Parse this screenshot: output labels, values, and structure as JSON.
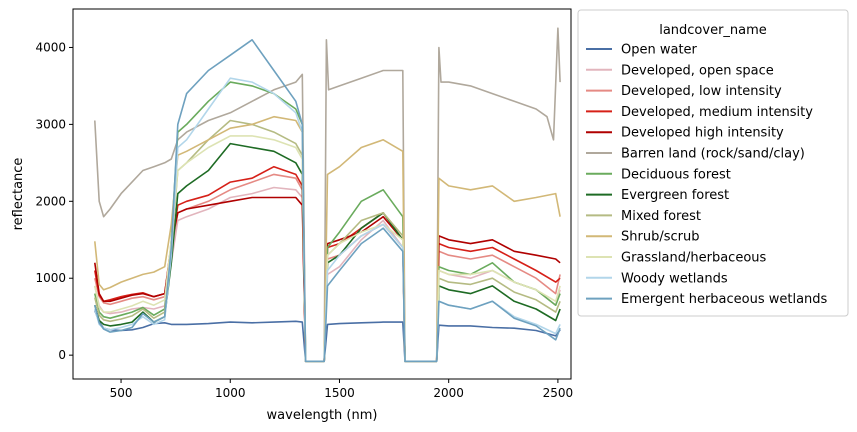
{
  "chart_data": {
    "type": "line",
    "title": "",
    "xlabel": "wavelength (nm)",
    "ylabel": "reflectance",
    "xlim": [
      280,
      2560
    ],
    "ylim": [
      -310,
      4500
    ],
    "xticks": [
      500,
      1000,
      1500,
      2000,
      2500
    ],
    "yticks": [
      0,
      1000,
      2000,
      3000,
      4000
    ],
    "grid": false,
    "legend": {
      "title": "landcover_name",
      "placement": "outside-right"
    },
    "series": [
      {
        "name": "Open water",
        "color": "#4a6fa5",
        "x": [
          380,
          400,
          420,
          450,
          500,
          550,
          600,
          650,
          700,
          730,
          760,
          800,
          900,
          1000,
          1100,
          1200,
          1300,
          1330,
          1345,
          1430,
          1445,
          1500,
          1600,
          1700,
          1790,
          1800,
          1945,
          1955,
          2000,
          2100,
          2200,
          2300,
          2400,
          2490,
          2510
        ],
        "y": [
          580,
          430,
          350,
          330,
          320,
          330,
          360,
          410,
          420,
          400,
          400,
          400,
          410,
          430,
          420,
          430,
          440,
          430,
          -80,
          -80,
          400,
          410,
          420,
          430,
          430,
          -80,
          -80,
          390,
          380,
          380,
          360,
          350,
          320,
          250,
          330
        ]
      },
      {
        "name": "Developed, open space",
        "color": "#e2b5bd",
        "x": [
          380,
          400,
          420,
          450,
          500,
          550,
          600,
          650,
          700,
          730,
          760,
          800,
          900,
          1000,
          1100,
          1200,
          1300,
          1330,
          1345,
          1430,
          1445,
          1500,
          1600,
          1700,
          1790,
          1800,
          1945,
          1955,
          2000,
          2100,
          2200,
          2300,
          2400,
          2490,
          2510
        ],
        "y": [
          900,
          640,
          560,
          540,
          560,
          600,
          620,
          600,
          640,
          1200,
          1750,
          1800,
          1900,
          2050,
          2100,
          2180,
          2150,
          2050,
          -80,
          -80,
          1050,
          1150,
          1500,
          1750,
          1400,
          -80,
          -80,
          1100,
          1050,
          1000,
          1100,
          950,
          850,
          650,
          850
        ]
      },
      {
        "name": "Developed, low intensity",
        "color": "#e58a84",
        "x": [
          380,
          400,
          420,
          450,
          500,
          550,
          600,
          650,
          700,
          730,
          760,
          800,
          900,
          1000,
          1100,
          1200,
          1300,
          1330,
          1345,
          1430,
          1445,
          1500,
          1600,
          1700,
          1790,
          1800,
          1945,
          1955,
          2000,
          2100,
          2200,
          2300,
          2400,
          2490,
          2510
        ],
        "y": [
          1000,
          760,
          680,
          660,
          700,
          740,
          760,
          720,
          760,
          1350,
          1850,
          1900,
          2000,
          2150,
          2250,
          2350,
          2300,
          2150,
          -80,
          -80,
          1250,
          1300,
          1550,
          1700,
          1400,
          -80,
          -80,
          1350,
          1300,
          1250,
          1300,
          1150,
          1000,
          800,
          1050
        ]
      },
      {
        "name": "Developed, medium intensity",
        "color": "#d62018",
        "x": [
          380,
          400,
          420,
          450,
          500,
          550,
          600,
          650,
          700,
          730,
          760,
          800,
          900,
          1000,
          1100,
          1200,
          1300,
          1330,
          1345,
          1430,
          1445,
          1500,
          1600,
          1700,
          1790,
          1800,
          1945,
          1955,
          2000,
          2100,
          2200,
          2300,
          2400,
          2490,
          2510
        ],
        "y": [
          1100,
          780,
          700,
          720,
          760,
          790,
          810,
          760,
          800,
          1400,
          1950,
          2000,
          2080,
          2250,
          2300,
          2450,
          2350,
          2200,
          -80,
          -80,
          1400,
          1450,
          1650,
          1850,
          1500,
          -80,
          -80,
          1450,
          1400,
          1350,
          1400,
          1250,
          1100,
          950,
          1000
        ]
      },
      {
        "name": "Developed high intensity",
        "color": "#b00000",
        "x": [
          380,
          400,
          420,
          450,
          500,
          550,
          600,
          650,
          700,
          730,
          760,
          800,
          900,
          1000,
          1100,
          1200,
          1300,
          1330,
          1345,
          1430,
          1445,
          1500,
          1600,
          1700,
          1790,
          1800,
          1945,
          1955,
          2000,
          2100,
          2200,
          2300,
          2400,
          2490,
          2510
        ],
        "y": [
          1200,
          800,
          700,
          700,
          740,
          780,
          800,
          760,
          800,
          1450,
          1850,
          1900,
          1950,
          2000,
          2050,
          2050,
          2050,
          1950,
          -80,
          -80,
          1450,
          1500,
          1600,
          1800,
          1500,
          -80,
          -80,
          1550,
          1500,
          1450,
          1500,
          1350,
          1300,
          1250,
          1200
        ]
      },
      {
        "name": "Barren land (rock/sand/clay)",
        "color": "#b0a89c",
        "x": [
          380,
          400,
          420,
          450,
          500,
          550,
          600,
          650,
          700,
          730,
          760,
          800,
          900,
          1000,
          1100,
          1200,
          1300,
          1330,
          1345,
          1430,
          1440,
          1450,
          1500,
          1600,
          1700,
          1790,
          1800,
          1945,
          1955,
          1965,
          2000,
          2100,
          2200,
          2300,
          2400,
          2450,
          2480,
          2500,
          2510
        ],
        "y": [
          3050,
          2000,
          1800,
          1900,
          2100,
          2250,
          2400,
          2450,
          2500,
          2550,
          2800,
          2900,
          3050,
          3150,
          3300,
          3450,
          3550,
          3650,
          -80,
          -80,
          4100,
          3450,
          3500,
          3600,
          3700,
          3700,
          -80,
          -80,
          4000,
          3550,
          3550,
          3500,
          3400,
          3300,
          3200,
          3100,
          2800,
          4250,
          3550
        ]
      },
      {
        "name": "Deciduous forest",
        "color": "#6aab5d",
        "x": [
          380,
          400,
          420,
          450,
          500,
          550,
          600,
          650,
          700,
          730,
          760,
          800,
          900,
          1000,
          1100,
          1200,
          1300,
          1330,
          1345,
          1430,
          1445,
          1500,
          1600,
          1700,
          1790,
          1800,
          1945,
          1955,
          2000,
          2100,
          2200,
          2300,
          2400,
          2490,
          2510
        ],
        "y": [
          800,
          560,
          500,
          480,
          520,
          560,
          620,
          520,
          600,
          1500,
          2900,
          3000,
          3300,
          3550,
          3500,
          3400,
          3200,
          3000,
          -80,
          -80,
          1400,
          1600,
          2000,
          2150,
          1800,
          -80,
          -80,
          1150,
          1100,
          1050,
          1200,
          950,
          850,
          650,
          800
        ]
      },
      {
        "name": "Evergreen forest",
        "color": "#1e6b24",
        "x": [
          380,
          400,
          420,
          450,
          500,
          550,
          600,
          650,
          700,
          730,
          760,
          800,
          900,
          1000,
          1100,
          1200,
          1300,
          1330,
          1345,
          1430,
          1445,
          1500,
          1600,
          1700,
          1790,
          1800,
          1945,
          1955,
          2000,
          2100,
          2200,
          2300,
          2400,
          2490,
          2510
        ],
        "y": [
          650,
          450,
          400,
          380,
          400,
          430,
          560,
          430,
          500,
          1200,
          2100,
          2200,
          2400,
          2750,
          2700,
          2650,
          2500,
          2350,
          -80,
          -80,
          1200,
          1300,
          1650,
          1850,
          1500,
          -80,
          -80,
          900,
          850,
          800,
          900,
          700,
          600,
          450,
          600
        ]
      },
      {
        "name": "Mixed forest",
        "color": "#b5bb83",
        "x": [
          380,
          400,
          420,
          450,
          500,
          550,
          600,
          650,
          700,
          730,
          760,
          800,
          900,
          1000,
          1100,
          1200,
          1300,
          1330,
          1345,
          1430,
          1445,
          1500,
          1600,
          1700,
          1790,
          1800,
          1945,
          1955,
          2000,
          2100,
          2200,
          2300,
          2400,
          2490,
          2510
        ],
        "y": [
          750,
          520,
          460,
          440,
          470,
          510,
          600,
          480,
          560,
          1350,
          2400,
          2500,
          2800,
          3050,
          3000,
          2900,
          2750,
          2600,
          -80,
          -80,
          1300,
          1450,
          1750,
          1850,
          1550,
          -80,
          -80,
          1000,
          950,
          920,
          1000,
          820,
          720,
          560,
          700
        ]
      },
      {
        "name": "Shrub/scrub",
        "color": "#d2b877",
        "x": [
          380,
          400,
          420,
          450,
          500,
          550,
          600,
          650,
          700,
          730,
          760,
          800,
          900,
          1000,
          1100,
          1200,
          1300,
          1330,
          1345,
          1430,
          1445,
          1500,
          1600,
          1700,
          1790,
          1800,
          1945,
          1955,
          2000,
          2100,
          2200,
          2300,
          2400,
          2490,
          2510
        ],
        "y": [
          1480,
          920,
          850,
          880,
          950,
          1000,
          1050,
          1080,
          1150,
          1700,
          2600,
          2650,
          2800,
          2950,
          3000,
          3100,
          3050,
          2900,
          -80,
          -80,
          2350,
          2450,
          2700,
          2800,
          2650,
          -80,
          -80,
          2300,
          2200,
          2150,
          2200,
          2000,
          2050,
          2100,
          1800
        ]
      },
      {
        "name": "Grassland/herbaceous",
        "color": "#dde3b3",
        "x": [
          380,
          400,
          420,
          450,
          500,
          550,
          600,
          650,
          700,
          730,
          760,
          800,
          900,
          1000,
          1100,
          1200,
          1300,
          1330,
          1345,
          1430,
          1445,
          1500,
          1600,
          1700,
          1790,
          1800,
          1945,
          1955,
          2000,
          2100,
          2200,
          2300,
          2400,
          2490,
          2510
        ],
        "y": [
          900,
          620,
          560,
          560,
          600,
          640,
          700,
          650,
          720,
          1500,
          2400,
          2500,
          2700,
          2850,
          2850,
          2800,
          2700,
          2550,
          -80,
          -80,
          1300,
          1450,
          1600,
          1700,
          1500,
          -80,
          -80,
          1100,
          1050,
          1050,
          1100,
          950,
          850,
          700,
          900
        ]
      },
      {
        "name": "Woody wetlands",
        "color": "#b2d6ea",
        "x": [
          380,
          400,
          420,
          450,
          500,
          550,
          600,
          650,
          700,
          730,
          760,
          800,
          900,
          1000,
          1100,
          1200,
          1300,
          1330,
          1345,
          1430,
          1445,
          1500,
          1600,
          1700,
          1790,
          1800,
          1945,
          1955,
          2000,
          2100,
          2200,
          2300,
          2400,
          2490,
          2510
        ],
        "y": [
          600,
          400,
          350,
          330,
          360,
          400,
          500,
          400,
          460,
          1300,
          2700,
          2800,
          3200,
          3600,
          3550,
          3400,
          3150,
          2900,
          -80,
          -80,
          1100,
          1300,
          1550,
          1700,
          1400,
          -80,
          -80,
          700,
          650,
          600,
          700,
          500,
          400,
          280,
          400
        ]
      },
      {
        "name": "Emergent herbaceous wetlands",
        "color": "#6ea1bf",
        "x": [
          380,
          400,
          420,
          450,
          500,
          550,
          600,
          650,
          700,
          730,
          760,
          800,
          900,
          1000,
          1100,
          1200,
          1300,
          1330,
          1345,
          1430,
          1445,
          1500,
          1600,
          1700,
          1790,
          1800,
          1945,
          1955,
          2000,
          2100,
          2200,
          2300,
          2400,
          2490,
          2510
        ],
        "y": [
          650,
          420,
          340,
          300,
          320,
          360,
          540,
          430,
          500,
          1400,
          3000,
          3400,
          3700,
          3900,
          4100,
          3700,
          3300,
          3000,
          -80,
          -80,
          900,
          1100,
          1450,
          1650,
          1350,
          -80,
          -80,
          700,
          650,
          600,
          700,
          480,
          380,
          200,
          350
        ]
      }
    ]
  }
}
